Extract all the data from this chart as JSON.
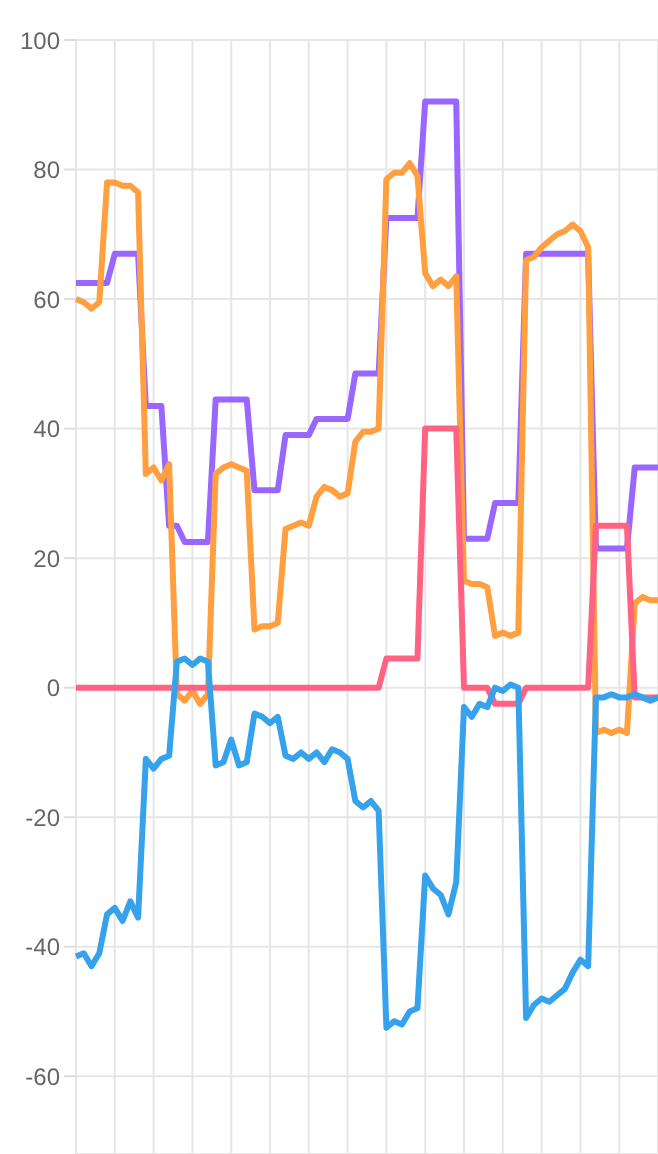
{
  "chart_data": {
    "type": "line",
    "categories": [
      null,
      null,
      null,
      null,
      null,
      null,
      null,
      null,
      null,
      null,
      null,
      null,
      null,
      null,
      null,
      null,
      null,
      null,
      null,
      null,
      null,
      null,
      null,
      null,
      null,
      null,
      null,
      null,
      null,
      null,
      null,
      null,
      null,
      null,
      null,
      null,
      null,
      null,
      null,
      null,
      null,
      null,
      null,
      null,
      null,
      null,
      null,
      null,
      null,
      null,
      null,
      null,
      null,
      null,
      null,
      null,
      null,
      null,
      null,
      null,
      null,
      null,
      null,
      null,
      null,
      null,
      null,
      null,
      null,
      null,
      null,
      null,
      null,
      null,
      null,
      null
    ],
    "series": [
      {
        "color": "#9966ff",
        "values": [
          62.5,
          62.5,
          62.5,
          62.5,
          62.5,
          67,
          67,
          67,
          67,
          43.5,
          43.5,
          43.5,
          25,
          25,
          22.5,
          22.5,
          22.5,
          22.5,
          44.5,
          44.5,
          44.5,
          44.5,
          44.5,
          30.5,
          30.5,
          30.5,
          30.5,
          39,
          39,
          39,
          39,
          41.5,
          41.5,
          41.5,
          41.5,
          41.5,
          48.5,
          48.5,
          48.5,
          48.5,
          72.5,
          72.5,
          72.5,
          72.5,
          72.5,
          90.5,
          90.5,
          90.5,
          90.5,
          90.5,
          23,
          23,
          23,
          23,
          28.5,
          28.5,
          28.5,
          28.5,
          67,
          67,
          67,
          67,
          67,
          67,
          67,
          67,
          67,
          21.5,
          21.5,
          21.5,
          21.5,
          21.5,
          34,
          34,
          34,
          34
        ]
      },
      {
        "color": "#ff9f40",
        "values": [
          60,
          59.5,
          58.5,
          59.5,
          78,
          78,
          77.5,
          77.5,
          76.5,
          33,
          34,
          32,
          34.5,
          -1,
          -2,
          -0.5,
          -2.5,
          -1,
          33,
          34,
          34.5,
          34,
          33.5,
          9,
          9.5,
          9.5,
          10,
          24.5,
          25,
          25.5,
          25,
          29.5,
          31,
          30.5,
          29.5,
          30,
          38,
          39.5,
          39.5,
          40,
          78.5,
          79.5,
          79.5,
          81,
          79,
          64,
          62,
          63,
          62,
          63.5,
          16.5,
          16,
          16,
          15.5,
          8,
          8.5,
          8,
          8.5,
          66,
          66.5,
          68,
          69,
          70,
          70.5,
          71.5,
          70.5,
          68,
          -7,
          -6.5,
          -7,
          -6.5,
          -7,
          13,
          14,
          13.5,
          13.5
        ]
      },
      {
        "color": "#ff6384",
        "values": [
          0,
          0,
          0,
          0,
          0,
          0,
          0,
          0,
          0,
          0,
          0,
          0,
          0,
          0,
          0,
          0,
          0,
          0,
          0,
          0,
          0,
          0,
          0,
          0,
          0,
          0,
          0,
          0,
          0,
          0,
          0,
          0,
          0,
          0,
          0,
          0,
          0,
          0,
          0,
          0,
          4.5,
          4.5,
          4.5,
          4.5,
          4.5,
          40,
          40,
          40,
          40,
          40,
          0,
          0,
          0,
          0,
          -2.5,
          -2.5,
          -2.5,
          -2.5,
          0,
          0,
          0,
          0,
          0,
          0,
          0,
          0,
          0,
          25,
          25,
          25,
          25,
          25,
          -1.5,
          -1.5,
          -1.5,
          -1.5
        ]
      },
      {
        "color": "#36a2eb",
        "values": [
          -41.5,
          -41,
          -43,
          -41,
          -35,
          -34,
          -36,
          -33,
          -35.5,
          -11,
          -12.5,
          -11,
          -10.5,
          4,
          4.5,
          3.5,
          4.5,
          4,
          -12,
          -11.5,
          -8,
          -12,
          -11.5,
          -4,
          -4.5,
          -5.5,
          -4.5,
          -10.5,
          -11,
          -10,
          -11,
          -10,
          -11.5,
          -9.5,
          -10,
          -11,
          -17.5,
          -18.5,
          -17.5,
          -19,
          -52.5,
          -51.5,
          -52,
          -50,
          -49.5,
          -29,
          -31,
          -32,
          -35,
          -30,
          -3,
          -4.5,
          -2.5,
          -3,
          0,
          -0.5,
          0.5,
          0,
          -51,
          -49,
          -48,
          -48.5,
          -47.5,
          -46.5,
          -44,
          -42,
          -43,
          -1.5,
          -1.5,
          -1,
          -1.5,
          -1.5,
          -1,
          -1.5,
          -2,
          -1.5
        ]
      }
    ],
    "ylim": [
      -72,
      100
    ],
    "yticks": [
      -60,
      -40,
      -20,
      0,
      20,
      40,
      60,
      80,
      100
    ],
    "grid": true,
    "marker": "none",
    "line_style": "solid",
    "tick_labels": "y"
  }
}
